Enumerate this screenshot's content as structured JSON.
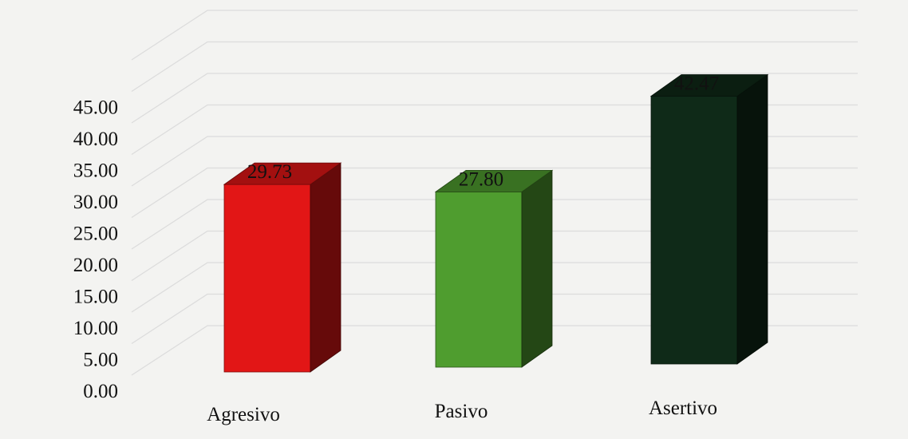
{
  "chart_data": {
    "type": "bar",
    "categories": [
      "Agresivo",
      "Pasivo",
      "Asertivo"
    ],
    "values": [
      29.73,
      27.8,
      42.47
    ],
    "value_labels": [
      "29.73",
      "27.80",
      "42.47"
    ],
    "ylim": [
      0,
      45
    ],
    "yticks": [
      "0.00",
      "5.00",
      "10.00",
      "15.00",
      "20.00",
      "25.00",
      "30.00",
      "35.00",
      "40.00",
      "45.00"
    ],
    "grid": true,
    "style": "3d-column",
    "colors": [
      "#e21616",
      "#4f9d2f",
      "#0f2a18"
    ]
  }
}
